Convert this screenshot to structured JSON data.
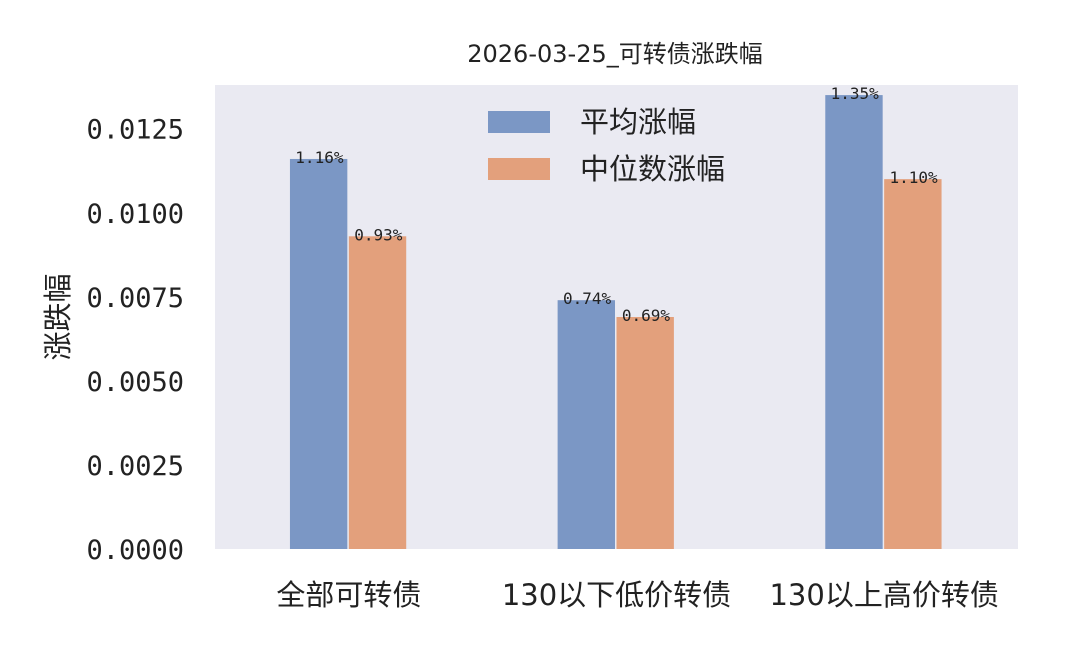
{
  "chart_data": {
    "type": "bar",
    "title": "2026-03-25_可转债涨跌幅",
    "xlabel": "",
    "ylabel": "涨跌幅",
    "categories": [
      "全部可转债",
      "130以下低价转债",
      "130以上高价转债"
    ],
    "series": [
      {
        "name": "平均涨幅",
        "color": "#7b97c5",
        "values": [
          0.0116,
          0.0074,
          0.0135
        ],
        "labels": [
          "1.16%",
          "0.74%",
          "1.35%"
        ]
      },
      {
        "name": "中位数涨幅",
        "color": "#e3a07c",
        "values": [
          0.0093,
          0.0069,
          0.011
        ],
        "labels": [
          "0.93%",
          "0.69%",
          "1.10%"
        ]
      }
    ],
    "ylim": [
      0,
      0.0138
    ],
    "yticks": [
      "0.0000",
      "0.0025",
      "0.0050",
      "0.0075",
      "0.0100",
      "0.0125"
    ],
    "ytick_values": [
      0,
      0.0025,
      0.005,
      0.0075,
      0.01,
      0.0125
    ],
    "grid": false,
    "legend": "top-center",
    "background": "#eaeaf2"
  }
}
